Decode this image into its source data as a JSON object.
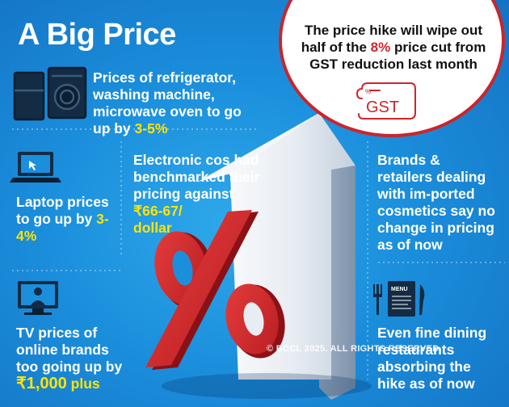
{
  "title": "A Big Price",
  "appliances": {
    "text": "Prices of refrigerator, washing machine, microwave oven to go up by",
    "highlight": "3-5%"
  },
  "callout": {
    "text_before": "The price hike will wipe out half of the",
    "highlight": "8%",
    "text_after": "price cut from GST reduction last month",
    "stamp_label": "GST"
  },
  "laptop": {
    "text": "Laptop prices to go up by",
    "highlight": "3-4%"
  },
  "electronics": {
    "text": "Electronic cos had benchmarked their pricing against",
    "highlight_value": "₹66-67/",
    "highlight_unit": "dollar"
  },
  "cosmetics": {
    "text": "Brands & retailers dealing with im-ported cosmetics say no change in pricing as of now"
  },
  "tv": {
    "text": "TV prices of online brands too going up by",
    "highlight": "₹1,000",
    "suffix": "plus"
  },
  "dining": {
    "menu_label": "MENU",
    "text": "Even fine dining restaurants absorbing the hike as of now"
  },
  "credit": "© BCCL 2025. ALL RIGHTS RESERVED."
}
